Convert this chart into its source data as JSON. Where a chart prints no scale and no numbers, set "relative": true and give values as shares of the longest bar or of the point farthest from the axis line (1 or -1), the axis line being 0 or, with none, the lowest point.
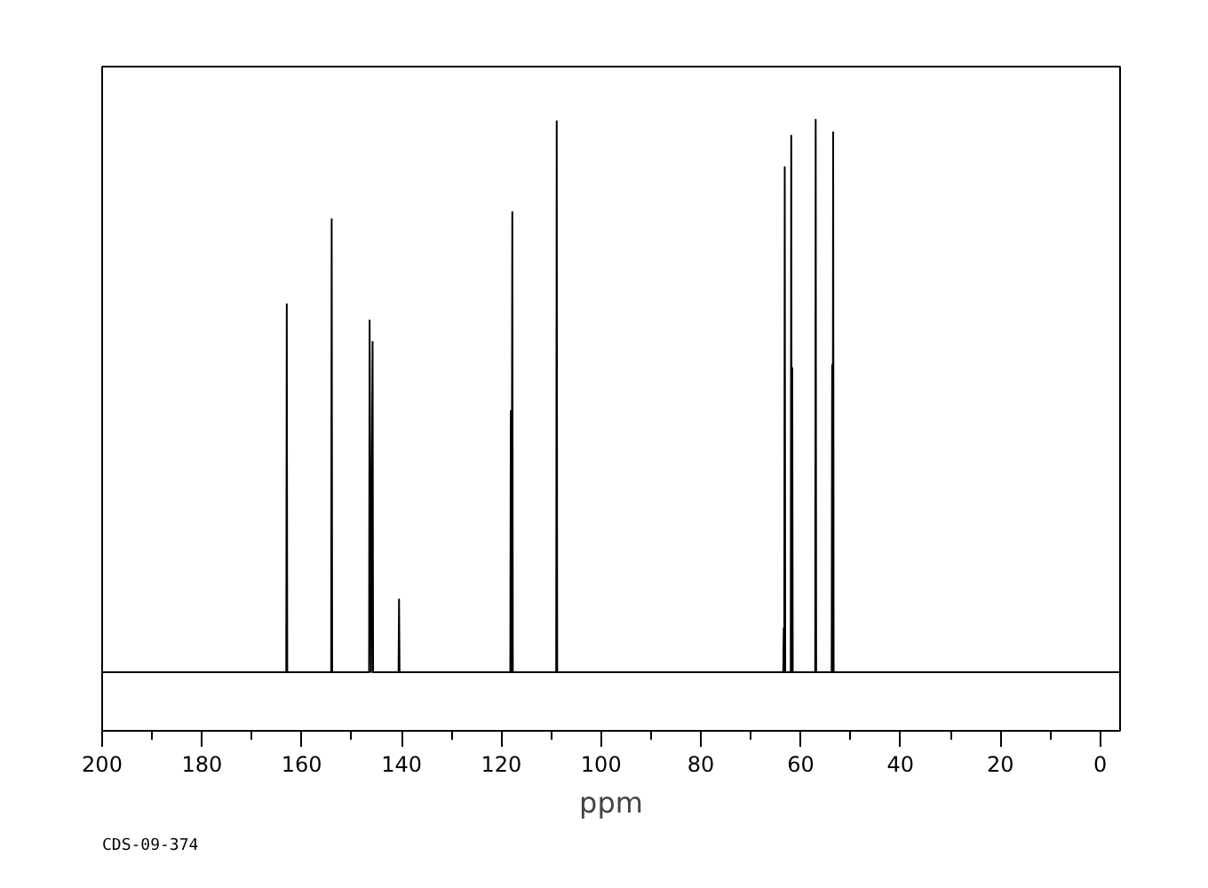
{
  "chart_data": {
    "type": "line",
    "relative": true,
    "xlabel": "ppm",
    "annotations": [
      "CDS-09-374"
    ],
    "xlim": [
      200,
      -4
    ],
    "xticks": [
      200,
      180,
      160,
      140,
      120,
      100,
      80,
      60,
      40,
      20,
      0
    ],
    "grid": false,
    "marker": "none",
    "line_style": "solid",
    "series": [
      {
        "color": "#000000",
        "x": [
          200,
          163.1,
          163.0,
          162.9,
          154.1,
          154.0,
          153.9,
          146.5,
          146.4,
          146.1,
          145.8,
          145.7,
          140.6,
          140.5,
          140.4,
          118.2,
          118.1,
          117.95,
          117.8,
          117.7,
          109.0,
          108.9,
          108.8,
          63.5,
          63.4,
          63.3,
          63.2,
          63.1,
          62.0,
          61.9,
          61.8,
          61.7,
          61.6,
          57.1,
          57.0,
          56.9,
          53.8,
          53.7,
          53.6,
          53.5,
          53.4,
          -4
        ],
        "values": [
          0,
          0,
          0.666,
          0,
          0,
          0.82,
          0,
          0,
          0.637,
          0,
          0.598,
          0,
          0,
          0.132,
          0,
          0,
          0.473,
          0,
          0.833,
          0,
          0,
          0.997,
          0,
          0,
          0.08,
          0,
          0.914,
          0,
          0,
          0.971,
          0,
          0.551,
          0,
          0,
          1,
          0,
          0,
          0.556,
          0,
          0.977,
          0,
          0
        ]
      }
    ]
  }
}
